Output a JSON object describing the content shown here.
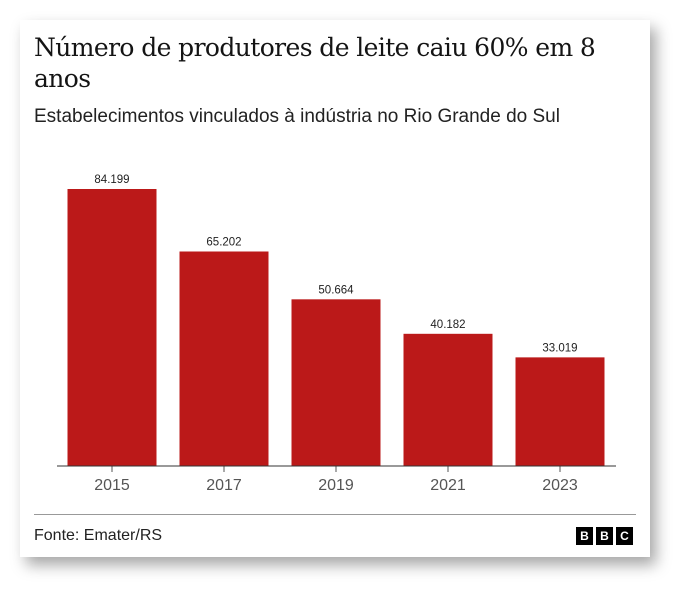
{
  "chart_data": {
    "type": "bar",
    "title": "Número de produtores de leite caiu 60% em 8 anos",
    "subtitle": "Estabelecimentos vinculados à indústria no Rio Grande do Sul",
    "categories": [
      "2015",
      "2017",
      "2019",
      "2021",
      "2023"
    ],
    "values": [
      84199,
      65202,
      50664,
      40182,
      33019
    ],
    "data_labels": [
      "84.199",
      "65.202",
      "50.664",
      "40.182",
      "33.019"
    ],
    "xlabel": "",
    "ylabel": "",
    "ylim": [
      0,
      84199
    ],
    "grid": false,
    "bar_color": "#bb1919"
  },
  "footer": {
    "source": "Fonte: Emater/RS",
    "logo": [
      "B",
      "B",
      "C"
    ]
  }
}
